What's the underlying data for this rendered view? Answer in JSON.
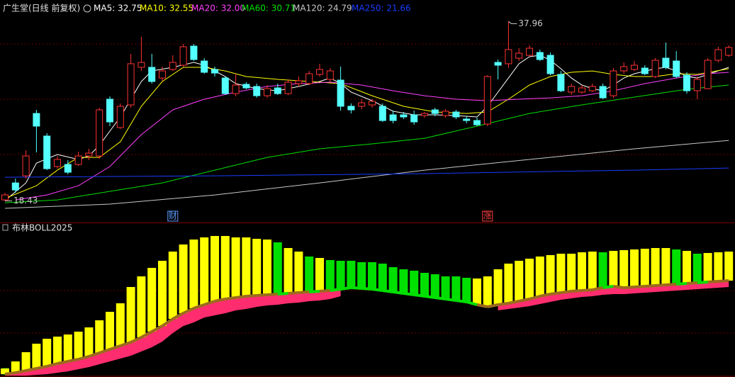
{
  "chart_data": [
    {
      "type": "candlestick",
      "title": "广生堂(日线 前复权)",
      "ylim": [
        16,
        40.3
      ],
      "up_color": "#ff3232",
      "down_color": "#54ffff",
      "candles": {
        "open": [
          18.54,
          20.39,
          21.16,
          27.95,
          25.49,
          22.17,
          22.4,
          22.4,
          23.32,
          23.32,
          29.5,
          26.41,
          28.88,
          32.97,
          32.97,
          31.81,
          32.74,
          33.2,
          35.28,
          33.66,
          32.74,
          31.81,
          30.11,
          31.12,
          30.89,
          29.88,
          30.73,
          30.11,
          31.2,
          31.2,
          32.2,
          31.66,
          31.58,
          28.73,
          28.73,
          28.88,
          28.73,
          27.8,
          27.8,
          27.8,
          27.72,
          28.34,
          27.72,
          28.11,
          27.34,
          27.18,
          26.8,
          33.51,
          33.36,
          33.97,
          34.28,
          34.59,
          34.28,
          32.2,
          30.27,
          30.27,
          30.42,
          30.89,
          29.88,
          32.58,
          32.74,
          32.89,
          31.97,
          33.97,
          33.66,
          32.12,
          30.42,
          30.65,
          33.74,
          34.28
        ],
        "high": [
          19.31,
          20.86,
          23.94,
          28.34,
          25.79,
          23.32,
          22.86,
          23.79,
          24.1,
          28.57,
          29.81,
          29.04,
          34.44,
          36.29,
          34.44,
          33.05,
          34.28,
          35.52,
          35.52,
          33.97,
          33.05,
          31.97,
          32.28,
          31.35,
          31.2,
          31.04,
          31.2,
          31.66,
          31.97,
          32.58,
          33.36,
          32.89,
          33.05,
          29.04,
          29.5,
          29.5,
          29.04,
          28.26,
          28.11,
          28.26,
          28.11,
          28.57,
          28.42,
          28.34,
          27.65,
          27.49,
          32.12,
          33.82,
          37.96,
          35.05,
          35.36,
          34.9,
          34.59,
          32.58,
          31.2,
          31.04,
          31.2,
          31.2,
          32.89,
          33.51,
          33.66,
          33.2,
          33.97,
          35.67,
          34.74,
          32.43,
          31.97,
          33.97,
          35.21,
          35.36
        ],
        "low": [
          18.43,
          19.31,
          20.86,
          23.71,
          21.78,
          21.94,
          21.32,
          22.24,
          22.86,
          23.02,
          26.57,
          26.26,
          28.57,
          32.58,
          31.2,
          31.5,
          32.58,
          33.05,
          33.66,
          32.28,
          31.97,
          29.96,
          29.81,
          30.58,
          29.65,
          29.65,
          29.96,
          29.96,
          30.89,
          31.04,
          31.97,
          31.35,
          28.26,
          27.95,
          28.42,
          28.57,
          27.03,
          26.87,
          27.34,
          26.72,
          27.49,
          27.65,
          27.49,
          27.34,
          26.87,
          26.57,
          26.57,
          31.66,
          32.89,
          33.66,
          34.13,
          33.66,
          32.12,
          30.27,
          29.96,
          30.11,
          30.27,
          29.5,
          29.65,
          32.28,
          32.58,
          32.12,
          31.81,
          32.74,
          31.81,
          30.11,
          29.5,
          30.58,
          33.51,
          34.13
        ],
        "close": [
          19.08,
          19.62,
          23.32,
          26.57,
          21.94,
          22.94,
          21.55,
          23.32,
          23.63,
          28.34,
          27.03,
          28.73,
          33.36,
          33.51,
          31.43,
          32.58,
          33.51,
          35.21,
          33.82,
          32.43,
          32.35,
          30.11,
          31.04,
          30.73,
          29.88,
          30.65,
          30.11,
          31.35,
          31.5,
          32.28,
          32.74,
          32.58,
          28.73,
          28.34,
          29.11,
          29.27,
          27.18,
          27.18,
          27.57,
          27.03,
          27.95,
          27.95,
          28.19,
          27.57,
          27.18,
          26.72,
          31.97,
          33.2,
          34.9,
          34.51,
          35.05,
          33.82,
          32.28,
          30.42,
          30.89,
          30.73,
          30.89,
          29.65,
          32.58,
          33.05,
          33.2,
          32.28,
          33.74,
          32.97,
          31.97,
          30.42,
          31.66,
          33.74,
          34.9,
          35.13
        ]
      },
      "ma": [
        {
          "label": "MA5: 32.75",
          "color": "#ffffff",
          "x": [
            0,
            2,
            3,
            5,
            7,
            8,
            9,
            10,
            11,
            12,
            13,
            14,
            16,
            18,
            19,
            21,
            22,
            24,
            26,
            28,
            30,
            31,
            32,
            33,
            35,
            37,
            39,
            41,
            43,
            45,
            46,
            47,
            48,
            49,
            50,
            51,
            52,
            53,
            54,
            55,
            56,
            57,
            58,
            59,
            60,
            62,
            63,
            64,
            65,
            66,
            67,
            69
          ],
          "values": [
            18.46,
            20.39,
            22.55,
            23.48,
            22.94,
            23.32,
            24.48,
            26.03,
            27.57,
            29.5,
            31.43,
            32.58,
            32.97,
            33.51,
            33.2,
            31.97,
            31.2,
            30.65,
            30.42,
            30.89,
            31.43,
            31.81,
            31.2,
            30.27,
            29.34,
            28.19,
            27.8,
            27.8,
            27.72,
            27.57,
            28.73,
            30.27,
            31.81,
            33.36,
            34.13,
            34.28,
            33.74,
            32.82,
            31.81,
            31.04,
            30.65,
            30.42,
            31.04,
            31.81,
            32.28,
            32.82,
            32.97,
            32.58,
            31.97,
            31.81,
            32.2,
            32.97
          ]
        },
        {
          "label": "MA10: 32.55",
          "color": "#ffff00",
          "x": [
            0,
            3,
            5,
            7,
            9,
            11,
            13,
            15,
            17,
            19,
            21,
            23,
            26,
            29,
            32,
            35,
            38,
            41,
            44,
            46,
            48,
            50,
            52,
            54,
            56,
            58,
            60,
            62,
            64,
            66,
            69
          ],
          "values": [
            18.7,
            20.08,
            21.78,
            23.17,
            23.17,
            24.87,
            28.73,
            31.43,
            32.97,
            32.97,
            32.58,
            31.97,
            31.66,
            31.43,
            31.2,
            29.88,
            28.73,
            28.11,
            27.95,
            28.11,
            29.5,
            31.04,
            31.97,
            32.43,
            32.58,
            32.2,
            31.97,
            31.97,
            32.28,
            32.2,
            32.82
          ]
        },
        {
          "label": "MA20: 32.00",
          "color": "#ff40ff",
          "x": [
            1,
            4,
            7,
            10,
            13,
            16,
            19,
            22,
            25,
            28,
            31,
            34,
            37,
            40,
            43,
            46,
            49,
            52,
            55,
            58,
            61,
            64,
            67,
            69
          ],
          "values": [
            18.54,
            19.08,
            20.08,
            22.17,
            25.64,
            28.34,
            29.5,
            30.27,
            30.89,
            31.2,
            31.35,
            31.04,
            30.42,
            29.88,
            29.5,
            29.34,
            29.5,
            29.65,
            29.88,
            30.42,
            31.2,
            31.81,
            32.28,
            32.43
          ]
        },
        {
          "label": "MA60: 30.71",
          "color": "#00e000",
          "x": [
            0,
            5,
            10,
            15,
            20,
            25,
            30,
            35,
            40,
            45,
            50,
            55,
            60,
            65,
            69
          ],
          "values": [
            18.23,
            18.54,
            19.47,
            20.39,
            21.78,
            23.17,
            24.1,
            24.64,
            25.25,
            26.57,
            27.95,
            28.88,
            29.73,
            30.58,
            31.04
          ]
        },
        {
          "label": "MA120: 24.79",
          "color": "#c8c8c8",
          "x": [
            0,
            10,
            20,
            30,
            40,
            50,
            60,
            69
          ],
          "values": [
            17.62,
            18.08,
            19.08,
            20.39,
            21.78,
            22.94,
            24.1,
            25.02
          ]
        },
        {
          "label": "MA250: 21.66",
          "color": "#1a3cff",
          "x": [
            0,
            20,
            40,
            60,
            69
          ],
          "values": [
            21.01,
            21.16,
            21.4,
            21.78,
            22.01
          ]
        }
      ],
      "events": [
        {
          "label": "财",
          "x": 16,
          "color": "#5a9cff"
        },
        {
          "label": "涨",
          "x": 46,
          "color": "#ff4040"
        }
      ]
    },
    {
      "type": "boll",
      "title": "布林BOLL2025",
      "ylim": [
        0,
        210
      ],
      "base_color": "#9c6a1c",
      "lower_color": "#ff2d6f",
      "upper": [
        10,
        20,
        33,
        45,
        52,
        55,
        58,
        62,
        68,
        78,
        90,
        102,
        125,
        140,
        152,
        162,
        175,
        185,
        192,
        195,
        197,
        197,
        195,
        195,
        193,
        192,
        188,
        180,
        175,
        168,
        166,
        163,
        162,
        162,
        160,
        160,
        158,
        153,
        150,
        148,
        145,
        143,
        140,
        140,
        138,
        137,
        140,
        150,
        158,
        162,
        165,
        168,
        170,
        172,
        172,
        174,
        175,
        174,
        176,
        177,
        178,
        179,
        180,
        180,
        178,
        176,
        172,
        173,
        174,
        175
      ],
      "base": [
        2,
        4,
        7,
        10,
        13,
        17,
        20,
        23,
        27,
        32,
        37,
        42,
        47,
        54,
        62,
        70,
        80,
        88,
        95,
        100,
        105,
        108,
        110,
        112,
        113,
        114,
        115,
        116,
        117,
        118,
        119,
        120,
        122,
        124,
        123,
        122,
        120,
        118,
        116,
        114,
        112,
        110,
        108,
        106,
        104,
        100,
        97,
        100,
        102,
        105,
        108,
        112,
        115,
        117,
        119,
        120,
        121,
        124,
        126,
        124,
        125,
        126,
        127,
        128,
        129,
        130,
        131,
        132,
        133,
        134
      ],
      "lower": [
        0,
        0,
        0,
        1,
        2,
        4,
        6,
        9,
        12,
        16,
        20,
        24,
        28,
        34,
        40,
        48,
        60,
        70,
        75,
        82,
        85,
        88,
        92,
        94,
        97,
        99,
        100,
        102,
        103,
        105,
        106,
        108,
        112,
        null,
        null,
        null,
        null,
        null,
        null,
        null,
        null,
        null,
        null,
        null,
        null,
        null,
        null,
        92,
        94,
        96,
        98,
        101,
        104,
        107,
        109,
        111,
        112,
        114,
        115,
        115,
        116,
        117,
        118,
        119,
        120,
        121,
        122,
        123,
        124,
        125
      ],
      "colors": [
        "#ffff00",
        "#ffff00",
        "#ffff00",
        "#ffff00",
        "#ffff00",
        "#ffff00",
        "#ffff00",
        "#ffff00",
        "#ffff00",
        "#ffff00",
        "#ffff00",
        "#ffff00",
        "#ffff00",
        "#ffff00",
        "#ffff00",
        "#ffff00",
        "#ffff00",
        "#ffff00",
        "#ffff00",
        "#ffff00",
        "#ffff00",
        "#ffff00",
        "#ffff00",
        "#ffff00",
        "#ffff00",
        "#ffff00",
        "#00e000",
        "#ffff00",
        "#ffff00",
        "#00e000",
        "#ffff00",
        "#00e000",
        "#00e000",
        "#00e000",
        "#00e000",
        "#00e000",
        "#00e000",
        "#00e000",
        "#00e000",
        "#00e000",
        "#00e000",
        "#00e000",
        "#00e000",
        "#00e000",
        "#00e000",
        "#ffff00",
        "#ffff00",
        "#ffff00",
        "#ffff00",
        "#ffff00",
        "#ffff00",
        "#ffff00",
        "#ffff00",
        "#ffff00",
        "#ffff00",
        "#ffff00",
        "#ffff00",
        "#00e000",
        "#ffff00",
        "#ffff00",
        "#ffff00",
        "#ffff00",
        "#ffff00",
        "#ffff00",
        "#00e000",
        "#ffff00",
        "#00e000",
        "#ffff00",
        "#ffff00",
        "#ffff00"
      ]
    }
  ]
}
